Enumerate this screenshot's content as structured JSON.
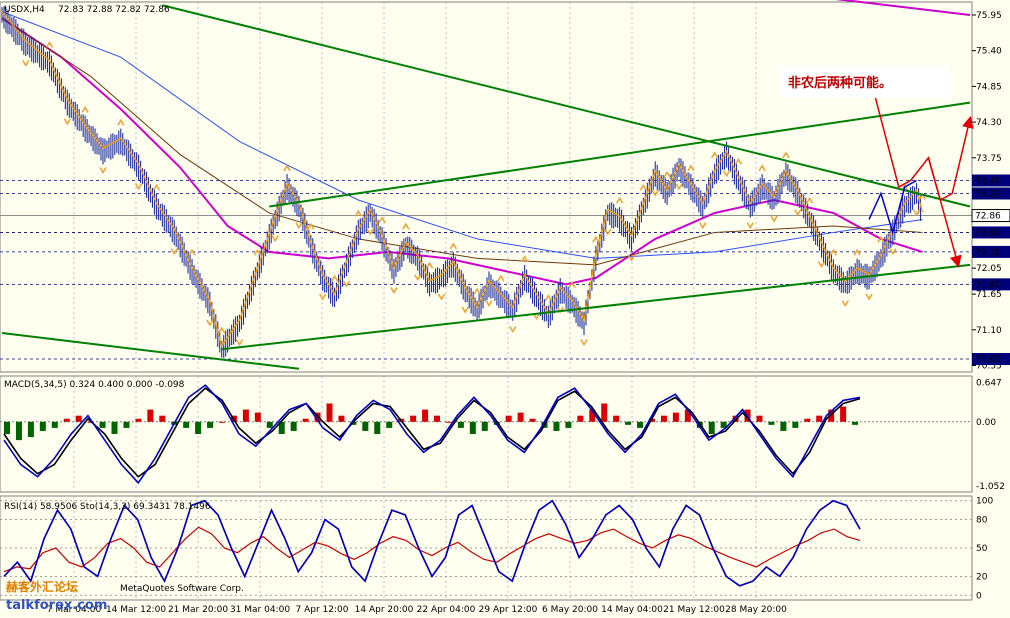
{
  "colors": {
    "background": "#fffff0",
    "grid": "#9aa0c8",
    "price": "#2030a0",
    "histogram_up": "#dd0000",
    "histogram_down": "#006400",
    "macd": "#0000cc",
    "signal": "#000000",
    "rsi": "#cc0000",
    "stoch": "#0000cc",
    "trendline": "#008000",
    "forecast_red": "#e00000",
    "forecast_blue": "#0000dd",
    "ma_magenta": "#d000d0",
    "ma_blue": "#3050ff",
    "ma_orange": "#ff9900",
    "bollinger": "#6b3a10",
    "fractal": "#f0a030"
  },
  "header": {
    "symbol": "USDX,H4",
    "ohlc": "72.83 72.88 72.82 72.86"
  },
  "annotation": {
    "text": "非农后两种可能。"
  },
  "watermark": {
    "cn": "赫客外汇论坛",
    "en": "talkforex.com",
    "copyright": "MetaQuotes Software Corp."
  },
  "chart_data": [
    {
      "type": "candlestick",
      "title": "USDX,H4 72.83 72.88 72.82 72.86",
      "x_ticks": [
        "7 Mar 04:00",
        "14 Mar 12:00",
        "21 Mar 20:00",
        "31 Mar 04:00",
        "7 Apr 12:00",
        "14 Apr 20:00",
        "22 Apr 04:00",
        "29 Apr 12:00",
        "6 May 20:00",
        "14 May 04:00",
        "21 May 12:00",
        "28 May 20:00"
      ],
      "y_ticks": [
        "75.95",
        "75.40",
        "74.85",
        "74.30",
        "73.75",
        "73.20",
        "72.60",
        "72.05",
        "71.65",
        "71.10",
        "70.55"
      ],
      "ylim": [
        70.45,
        76.15
      ],
      "horizontal_levels": [
        "73.40",
        "73.20",
        "72.60",
        "72.30",
        "71.80",
        "70.65"
      ],
      "current_price": "72.86",
      "price_path": [
        [
          0,
          75.95
        ],
        [
          4,
          75.5
        ],
        [
          8,
          75.2
        ],
        [
          11,
          74.6
        ],
        [
          14,
          74.2
        ],
        [
          17,
          73.85
        ],
        [
          20,
          74.0
        ],
        [
          23,
          73.6
        ],
        [
          26,
          73.0
        ],
        [
          29,
          72.6
        ],
        [
          32,
          72.0
        ],
        [
          35,
          71.5
        ],
        [
          37,
          70.8
        ],
        [
          40,
          71.2
        ],
        [
          43,
          72.0
        ],
        [
          46,
          72.8
        ],
        [
          48,
          73.3
        ],
        [
          50,
          73.0
        ],
        [
          52,
          72.4
        ],
        [
          54,
          71.9
        ],
        [
          56,
          71.6
        ],
        [
          58,
          72.1
        ],
        [
          60,
          72.6
        ],
        [
          62,
          72.9
        ],
        [
          64,
          72.5
        ],
        [
          66,
          72.0
        ],
        [
          68,
          72.4
        ],
        [
          70,
          72.2
        ],
        [
          72,
          71.8
        ],
        [
          74,
          71.9
        ],
        [
          76,
          72.1
        ],
        [
          78,
          71.7
        ],
        [
          80,
          71.4
        ],
        [
          82,
          71.8
        ],
        [
          84,
          71.6
        ],
        [
          86,
          71.4
        ],
        [
          88,
          71.9
        ],
        [
          90,
          71.6
        ],
        [
          92,
          71.3
        ],
        [
          94,
          71.7
        ],
        [
          96,
          71.5
        ],
        [
          98,
          71.2
        ],
        [
          100,
          72.2
        ],
        [
          102,
          72.9
        ],
        [
          104,
          72.8
        ],
        [
          106,
          72.5
        ],
        [
          108,
          73.0
        ],
        [
          110,
          73.5
        ],
        [
          112,
          73.2
        ],
        [
          114,
          73.6
        ],
        [
          116,
          73.3
        ],
        [
          118,
          73.0
        ],
        [
          120,
          73.5
        ],
        [
          122,
          73.8
        ],
        [
          124,
          73.4
        ],
        [
          126,
          73.0
        ],
        [
          128,
          73.3
        ],
        [
          130,
          73.1
        ],
        [
          132,
          73.5
        ],
        [
          134,
          73.2
        ],
        [
          136,
          72.8
        ],
        [
          138,
          72.4
        ],
        [
          140,
          72.0
        ],
        [
          142,
          71.8
        ],
        [
          144,
          72.0
        ],
        [
          146,
          71.9
        ],
        [
          148,
          72.2
        ],
        [
          150,
          72.6
        ],
        [
          152,
          73.0
        ],
        [
          154,
          73.2
        ],
        [
          155,
          72.86
        ]
      ],
      "series": [
        {
          "name": "",
          "color": "#d000d0",
          "values": [
            [
              0,
              75.9
            ],
            [
              10,
              75.3
            ],
            [
              20,
              74.5
            ],
            [
              30,
              73.6
            ],
            [
              38,
              72.7
            ],
            [
              45,
              72.3
            ],
            [
              55,
              72.2
            ],
            [
              65,
              72.3
            ],
            [
              75,
              72.2
            ],
            [
              85,
              72.0
            ],
            [
              95,
              71.8
            ],
            [
              100,
              71.9
            ],
            [
              110,
              72.5
            ],
            [
              120,
              72.9
            ],
            [
              130,
              73.1
            ],
            [
              140,
              72.9
            ],
            [
              148,
              72.5
            ],
            [
              155,
              72.3
            ]
          ]
        },
        {
          "name": "",
          "color": "#3050ff",
          "values": [
            [
              0,
              76.0
            ],
            [
              20,
              75.3
            ],
            [
              40,
              74.0
            ],
            [
              60,
              73.1
            ],
            [
              80,
              72.5
            ],
            [
              100,
              72.2
            ],
            [
              120,
              72.3
            ],
            [
              140,
              72.6
            ],
            [
              155,
              72.8
            ]
          ]
        },
        {
          "name": "",
          "color": "#6b3a10",
          "values": [
            [
              0,
              75.9
            ],
            [
              15,
              75.0
            ],
            [
              30,
              73.8
            ],
            [
              45,
              72.9
            ],
            [
              60,
              72.5
            ],
            [
              80,
              72.2
            ],
            [
              100,
              72.1
            ],
            [
              120,
              72.6
            ],
            [
              140,
              72.7
            ],
            [
              155,
              72.6
            ]
          ]
        }
      ],
      "trendlines": [
        {
          "color": "#008000",
          "from": [
            27,
            76.1
          ],
          "to": [
            163,
            73.0
          ]
        },
        {
          "color": "#008000",
          "from": [
            45,
            73.0
          ],
          "to": [
            163,
            74.6
          ]
        },
        {
          "color": "#008000",
          "from": [
            37,
            70.8
          ],
          "to": [
            163,
            72.1
          ]
        },
        {
          "color": "#008000",
          "from": [
            0,
            71.05
          ],
          "to": [
            50,
            70.5
          ]
        },
        {
          "color": "#cc00cc",
          "from": [
            140,
            76.2
          ],
          "to": [
            163,
            75.95
          ]
        }
      ],
      "forecast_red": [
        [
          147,
          74.7
        ],
        [
          151,
          73.3
        ],
        [
          153,
          73.4
        ],
        [
          156,
          73.75
        ],
        [
          158,
          73.1
        ],
        [
          160,
          73.2
        ],
        [
          163,
          74.35
        ]
      ],
      "forecast_red_alt": [
        [
          156,
          73.75
        ],
        [
          158,
          73.1
        ],
        [
          161,
          72.1
        ]
      ],
      "forecast_blue": [
        [
          146,
          72.8
        ],
        [
          148,
          73.2
        ],
        [
          150,
          72.6
        ],
        [
          152,
          73.3
        ],
        [
          154,
          73.4
        ]
      ]
    },
    {
      "type": "bar",
      "title": "MACD(5,34,5) 0.324 0.400 0.000 -0.098",
      "y_ticks": [
        "0.647",
        "0.00",
        "-1.052"
      ],
      "ylim": [
        -1.15,
        0.75
      ],
      "histogram": [
        -0.2,
        -0.3,
        -0.25,
        -0.15,
        -0.1,
        0.05,
        0.1,
        0.0,
        -0.1,
        -0.2,
        -0.1,
        0.05,
        0.2,
        0.1,
        -0.05,
        -0.1,
        -0.2,
        -0.1,
        0.0,
        0.1,
        0.2,
        0.15,
        -0.1,
        -0.2,
        -0.15,
        0.05,
        0.15,
        0.3,
        0.1,
        -0.05,
        -0.15,
        -0.2,
        -0.1,
        0.05,
        0.1,
        0.2,
        0.1,
        0.0,
        -0.1,
        -0.2,
        -0.15,
        -0.05,
        0.1,
        0.15,
        0.05,
        -0.1,
        -0.15,
        -0.1,
        0.1,
        0.2,
        0.3,
        0.1,
        -0.05,
        -0.1,
        0.05,
        0.1,
        0.15,
        0.2,
        -0.1,
        -0.2,
        -0.1,
        0.1,
        0.2,
        0.1,
        -0.05,
        -0.15,
        -0.1,
        0.05,
        0.1,
        0.2,
        0.25,
        -0.05
      ],
      "macd": [
        -0.3,
        -0.7,
        -0.9,
        -0.6,
        -0.2,
        0.1,
        -0.3,
        -0.7,
        -1.0,
        -0.6,
        -0.1,
        0.4,
        0.6,
        0.3,
        -0.2,
        -0.4,
        -0.1,
        0.2,
        0.3,
        -0.1,
        -0.3,
        0.1,
        0.35,
        0.2,
        -0.2,
        -0.5,
        -0.3,
        0.1,
        0.4,
        0.1,
        -0.3,
        -0.5,
        -0.1,
        0.4,
        0.55,
        0.2,
        -0.2,
        -0.5,
        -0.2,
        0.3,
        0.45,
        0.1,
        -0.3,
        -0.1,
        0.2,
        -0.2,
        -0.6,
        -0.9,
        -0.4,
        0.1,
        0.35,
        0.4
      ],
      "signal": [
        -0.2,
        -0.6,
        -0.85,
        -0.7,
        -0.3,
        0.05,
        -0.2,
        -0.6,
        -0.9,
        -0.7,
        -0.2,
        0.3,
        0.55,
        0.35,
        -0.1,
        -0.35,
        -0.15,
        0.15,
        0.3,
        0.0,
        -0.25,
        0.05,
        0.3,
        0.25,
        -0.1,
        -0.45,
        -0.35,
        0.05,
        0.35,
        0.15,
        -0.25,
        -0.45,
        -0.15,
        0.35,
        0.5,
        0.25,
        -0.15,
        -0.45,
        -0.25,
        0.25,
        0.4,
        0.15,
        -0.25,
        -0.15,
        0.15,
        -0.15,
        -0.55,
        -0.85,
        -0.5,
        0.05,
        0.3,
        0.38
      ]
    },
    {
      "type": "line",
      "title": "RSI(14) 58.9506  Sto(14,3,3) 69.3431 78.1496",
      "y_ticks": [
        "100",
        "80",
        "50",
        "20",
        "0"
      ],
      "ylim": [
        -5,
        105
      ],
      "rsi": [
        25,
        30,
        28,
        45,
        50,
        35,
        30,
        40,
        55,
        60,
        50,
        35,
        30,
        45,
        60,
        72,
        65,
        50,
        45,
        55,
        62,
        50,
        40,
        48,
        56,
        52,
        44,
        38,
        45,
        55,
        62,
        58,
        48,
        42,
        50,
        56,
        46,
        38,
        35,
        44,
        52,
        60,
        65,
        60,
        55,
        58,
        66,
        70,
        62,
        55,
        50,
        58,
        64,
        60,
        52,
        46,
        40,
        35,
        30,
        38,
        45,
        52,
        58,
        66,
        70,
        62,
        58
      ],
      "stoch": [
        20,
        35,
        15,
        60,
        90,
        70,
        30,
        20,
        60,
        95,
        80,
        40,
        15,
        50,
        95,
        100,
        85,
        50,
        20,
        55,
        90,
        60,
        25,
        45,
        80,
        70,
        30,
        15,
        55,
        90,
        85,
        50,
        20,
        40,
        85,
        95,
        60,
        25,
        15,
        55,
        90,
        100,
        75,
        40,
        60,
        85,
        95,
        80,
        50,
        30,
        70,
        95,
        85,
        50,
        20,
        10,
        15,
        30,
        20,
        40,
        70,
        90,
        100,
        95,
        70
      ],
      "levels": [
        100,
        80,
        50,
        20,
        0
      ]
    }
  ]
}
